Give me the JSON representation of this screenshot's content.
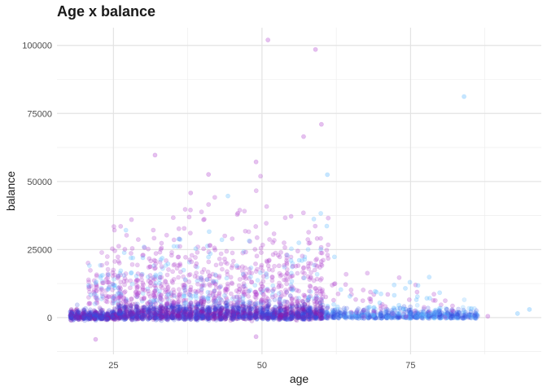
{
  "chart_data": {
    "type": "scatter",
    "title": "Age x balance",
    "xlabel": "age",
    "ylabel": "balance",
    "xlim": [
      15.5,
      97
    ],
    "ylim": [
      -13500,
      106500
    ],
    "x_ticks": [
      25,
      50,
      75
    ],
    "x_tick_labels": [
      "25",
      "50",
      "75"
    ],
    "y_ticks": [
      0,
      25000,
      50000,
      75000,
      100000
    ],
    "y_tick_labels": [
      "0",
      "25000",
      "50000",
      "75000",
      "100000"
    ],
    "grid": true,
    "legend": "none",
    "colors": {
      "series_a": "#b44dd1",
      "series_b": "#5cb8ff",
      "dense_blue": "#3a4fe0",
      "dense_purple": "#8a1fb0",
      "grid": "#ebebeb"
    },
    "notable_points": [
      {
        "x": 51,
        "y": 102000
      },
      {
        "x": 59,
        "y": 98500
      },
      {
        "x": 84,
        "y": 81200
      },
      {
        "x": 60,
        "y": 71000
      },
      {
        "x": 57,
        "y": 66500
      },
      {
        "x": 32,
        "y": 59700
      },
      {
        "x": 61,
        "y": 52500
      },
      {
        "x": 38,
        "y": 45800
      },
      {
        "x": 49,
        "y": 57200
      },
      {
        "x": 41,
        "y": 52600
      },
      {
        "x": 93,
        "y": 1500
      },
      {
        "x": 95,
        "y": 3000
      },
      {
        "x": 88,
        "y": 500
      },
      {
        "x": 22,
        "y": -8000
      },
      {
        "x": 49,
        "y": -7000
      }
    ]
  }
}
